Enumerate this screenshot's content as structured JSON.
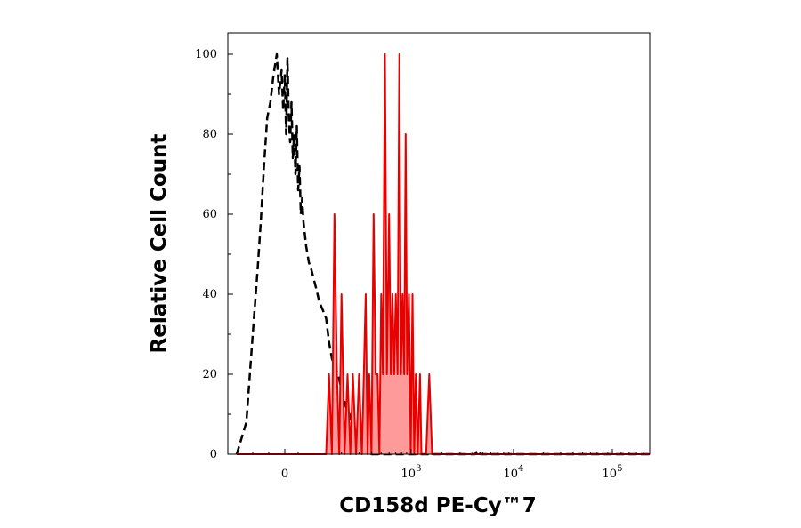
{
  "chart_data": {
    "type": "area",
    "title": "",
    "xlabel": "CD158d PE-Cy™7",
    "ylabel": "Relative Cell Count",
    "x_scale": "biexponential (logicle)",
    "x_ticks": [
      {
        "value": 0,
        "label": "0"
      },
      {
        "value": 1000,
        "base": "10",
        "exp": "3"
      },
      {
        "value": 10000,
        "base": "10",
        "exp": "4"
      },
      {
        "value": 100000,
        "base": "10",
        "exp": "5"
      }
    ],
    "y_ticks": [
      0,
      20,
      40,
      60,
      80,
      100
    ],
    "ylim": [
      0,
      100
    ],
    "grid": false,
    "legend": "none",
    "series": [
      {
        "style": "dashed",
        "color": "#000000",
        "fill": "none",
        "points": [
          [
            -150,
            0
          ],
          [
            -120,
            8
          ],
          [
            -100,
            30
          ],
          [
            -85,
            46
          ],
          [
            -75,
            58
          ],
          [
            -65,
            72
          ],
          [
            -55,
            84
          ],
          [
            -45,
            88
          ],
          [
            -35,
            95
          ],
          [
            -25,
            100
          ],
          [
            -18,
            90
          ],
          [
            -10,
            96
          ],
          [
            -5,
            86
          ],
          [
            0,
            95
          ],
          [
            5,
            80
          ],
          [
            10,
            99
          ],
          [
            15,
            84
          ],
          [
            20,
            78
          ],
          [
            25,
            88
          ],
          [
            30,
            74
          ],
          [
            35,
            80
          ],
          [
            40,
            70
          ],
          [
            45,
            82
          ],
          [
            50,
            66
          ],
          [
            55,
            72
          ],
          [
            60,
            60
          ],
          [
            65,
            64
          ],
          [
            70,
            58
          ],
          [
            80,
            52
          ],
          [
            90,
            48
          ],
          [
            100,
            46
          ],
          [
            110,
            42
          ],
          [
            120,
            38
          ],
          [
            130,
            36
          ],
          [
            140,
            34
          ],
          [
            150,
            28
          ],
          [
            160,
            24
          ],
          [
            170,
            22
          ],
          [
            185,
            20
          ],
          [
            200,
            16
          ],
          [
            220,
            12
          ],
          [
            240,
            10
          ],
          [
            260,
            6
          ],
          [
            280,
            4
          ],
          [
            300,
            2
          ],
          [
            330,
            1
          ],
          [
            360,
            0.5
          ],
          [
            400,
            0
          ],
          [
            500,
            0
          ],
          [
            4200,
            0
          ],
          [
            4500,
            1
          ],
          [
            4800,
            0
          ],
          [
            150000,
            0
          ]
        ]
      },
      {
        "style": "solid",
        "color": "#e60000",
        "fill": "#ff9a9a",
        "points": [
          [
            -150,
            0
          ],
          [
            140,
            0
          ],
          [
            150,
            20
          ],
          [
            160,
            0
          ],
          [
            170,
            60
          ],
          [
            180,
            20
          ],
          [
            190,
            0
          ],
          [
            200,
            40
          ],
          [
            215,
            0
          ],
          [
            230,
            20
          ],
          [
            245,
            0
          ],
          [
            260,
            20
          ],
          [
            280,
            0
          ],
          [
            300,
            20
          ],
          [
            320,
            0
          ],
          [
            335,
            20
          ],
          [
            350,
            40
          ],
          [
            365,
            0
          ],
          [
            380,
            20
          ],
          [
            400,
            0
          ],
          [
            420,
            60
          ],
          [
            440,
            20
          ],
          [
            460,
            20
          ],
          [
            480,
            0
          ],
          [
            500,
            40
          ],
          [
            520,
            20
          ],
          [
            545,
            100
          ],
          [
            570,
            20
          ],
          [
            600,
            60
          ],
          [
            625,
            20
          ],
          [
            650,
            40
          ],
          [
            675,
            20
          ],
          [
            700,
            40
          ],
          [
            730,
            20
          ],
          [
            760,
            100
          ],
          [
            790,
            20
          ],
          [
            820,
            40
          ],
          [
            850,
            20
          ],
          [
            880,
            80
          ],
          [
            910,
            20
          ],
          [
            950,
            40
          ],
          [
            990,
            0
          ],
          [
            1030,
            40
          ],
          [
            1070,
            0
          ],
          [
            1110,
            20
          ],
          [
            1160,
            0
          ],
          [
            1220,
            20
          ],
          [
            1260,
            0
          ],
          [
            1400,
            0
          ],
          [
            1500,
            20
          ],
          [
            1600,
            0
          ],
          [
            150000,
            0
          ]
        ]
      }
    ]
  }
}
